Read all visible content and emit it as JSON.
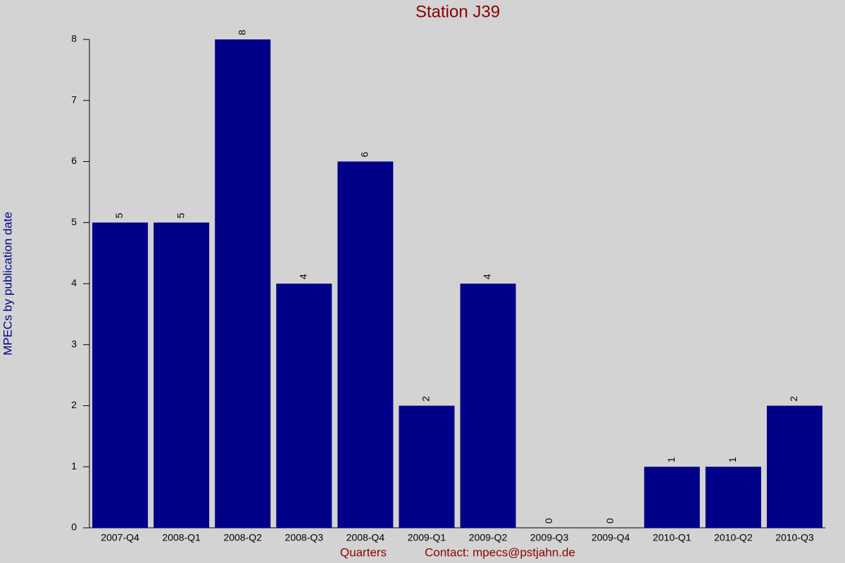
{
  "chart_data": {
    "type": "bar",
    "title": "Station J39",
    "y_label": "MPECs by publication date",
    "x_label": "Quarters",
    "footer": "Contact: mpecs@pstjahn.de",
    "categories": [
      "2007-Q4",
      "2008-Q1",
      "2008-Q2",
      "2008-Q3",
      "2008-Q4",
      "2009-Q1",
      "2009-Q2",
      "2009-Q3",
      "2009-Q4",
      "2010-Q1",
      "2010-Q2",
      "2010-Q3"
    ],
    "values": [
      5,
      5,
      8,
      4,
      6,
      2,
      4,
      0,
      0,
      1,
      1,
      2
    ],
    "color": "#000088",
    "ylim": [
      0,
      8
    ],
    "yticks": [
      0,
      1,
      2,
      3,
      4,
      5,
      6,
      7,
      8
    ],
    "grid": false
  }
}
